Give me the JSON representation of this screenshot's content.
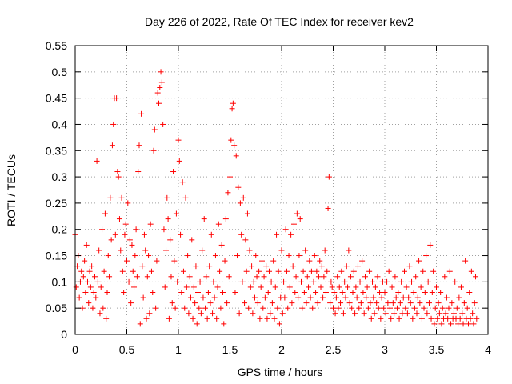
{
  "chart_data": {
    "type": "scatter",
    "title": "Day 226 of 2022, Rate Of TEC Index for receiver kev2",
    "xlabel": "GPS time / hours",
    "ylabel": "ROTI / TECUs",
    "xlim": [
      0,
      4
    ],
    "ylim": [
      0,
      0.55
    ],
    "grid": true,
    "marker": "+",
    "series_color": "#ff0000",
    "x_ticks": [
      0,
      0.5,
      1,
      1.5,
      2,
      2.5,
      3,
      3.5,
      4
    ],
    "x_tick_labels": [
      "0",
      "0.5",
      "1",
      "1.5",
      "2",
      "2.5",
      "3",
      "3.5",
      "4"
    ],
    "y_ticks": [
      0,
      0.05,
      0.1,
      0.15,
      0.2,
      0.25,
      0.3,
      0.35,
      0.4,
      0.45,
      0.5,
      0.55
    ],
    "y_tick_labels": [
      "0",
      "0.05",
      "0.1",
      "0.15",
      "0.2",
      "0.25",
      "0.3",
      "0.35",
      "0.4",
      "0.45",
      "0.5",
      "0.55"
    ],
    "points": [
      [
        0.0,
        0.19
      ],
      [
        0.01,
        0.09
      ],
      [
        0.02,
        0.13
      ],
      [
        0.03,
        0.15
      ],
      [
        0.04,
        0.07
      ],
      [
        0.05,
        0.1
      ],
      [
        0.06,
        0.12
      ],
      [
        0.07,
        0.05
      ],
      [
        0.08,
        0.11
      ],
      [
        0.09,
        0.14
      ],
      [
        0.1,
        0.08
      ],
      [
        0.11,
        0.17
      ],
      [
        0.12,
        0.1
      ],
      [
        0.13,
        0.06
      ],
      [
        0.14,
        0.12
      ],
      [
        0.15,
        0.09
      ],
      [
        0.16,
        0.13
      ],
      [
        0.17,
        0.05
      ],
      [
        0.18,
        0.08
      ],
      [
        0.19,
        0.11
      ],
      [
        0.2,
        0.07
      ],
      [
        0.21,
        0.33
      ],
      [
        0.22,
        0.1
      ],
      [
        0.23,
        0.16
      ],
      [
        0.24,
        0.04
      ],
      [
        0.25,
        0.09
      ],
      [
        0.26,
        0.2
      ],
      [
        0.27,
        0.05
      ],
      [
        0.28,
        0.12
      ],
      [
        0.29,
        0.23
      ],
      [
        0.3,
        0.03
      ],
      [
        0.31,
        0.08
      ],
      [
        0.32,
        0.15
      ],
      [
        0.33,
        0.11
      ],
      [
        0.34,
        0.26
      ],
      [
        0.35,
        0.18
      ],
      [
        0.36,
        0.36
      ],
      [
        0.37,
        0.4
      ],
      [
        0.38,
        0.45
      ],
      [
        0.39,
        0.19
      ],
      [
        0.4,
        0.45
      ],
      [
        0.41,
        0.31
      ],
      [
        0.42,
        0.3
      ],
      [
        0.43,
        0.22
      ],
      [
        0.44,
        0.16
      ],
      [
        0.45,
        0.26
      ],
      [
        0.46,
        0.12
      ],
      [
        0.47,
        0.08
      ],
      [
        0.48,
        0.19
      ],
      [
        0.49,
        0.21
      ],
      [
        0.5,
        0.14
      ],
      [
        0.51,
        0.25
      ],
      [
        0.52,
        0.1
      ],
      [
        0.53,
        0.18
      ],
      [
        0.54,
        0.06
      ],
      [
        0.55,
        0.17
      ],
      [
        0.56,
        0.12
      ],
      [
        0.57,
        0.09
      ],
      [
        0.58,
        0.15
      ],
      [
        0.59,
        0.2
      ],
      [
        0.6,
        0.11
      ],
      [
        0.61,
        0.31
      ],
      [
        0.62,
        0.36
      ],
      [
        0.63,
        0.02
      ],
      [
        0.64,
        0.42
      ],
      [
        0.65,
        0.13
      ],
      [
        0.66,
        0.07
      ],
      [
        0.67,
        0.19
      ],
      [
        0.68,
        0.16
      ],
      [
        0.69,
        0.03
      ],
      [
        0.7,
        0.11
      ],
      [
        0.71,
        0.15
      ],
      [
        0.72,
        0.04
      ],
      [
        0.73,
        0.21
      ],
      [
        0.74,
        0.12
      ],
      [
        0.75,
        0.08
      ],
      [
        0.76,
        0.35
      ],
      [
        0.77,
        0.39
      ],
      [
        0.78,
        0.05
      ],
      [
        0.79,
        0.14
      ],
      [
        0.8,
        0.46
      ],
      [
        0.81,
        0.44
      ],
      [
        0.82,
        0.47
      ],
      [
        0.83,
        0.5
      ],
      [
        0.84,
        0.48
      ],
      [
        0.85,
        0.4
      ],
      [
        0.86,
        0.2
      ],
      [
        0.87,
        0.09
      ],
      [
        0.88,
        0.16
      ],
      [
        0.89,
        0.26
      ],
      [
        0.9,
        0.22
      ],
      [
        0.91,
        0.03
      ],
      [
        0.92,
        0.18
      ],
      [
        0.93,
        0.11
      ],
      [
        0.94,
        0.06
      ],
      [
        0.95,
        0.31
      ],
      [
        0.96,
        0.14
      ],
      [
        0.97,
        0.05
      ],
      [
        0.98,
        0.23
      ],
      [
        0.99,
        0.1
      ],
      [
        1.0,
        0.37
      ],
      [
        1.01,
        0.33
      ],
      [
        1.02,
        0.19
      ],
      [
        1.03,
        0.08
      ],
      [
        1.04,
        0.29
      ],
      [
        1.05,
        0.12
      ],
      [
        1.06,
        0.05
      ],
      [
        1.07,
        0.26
      ],
      [
        1.08,
        0.09
      ],
      [
        1.09,
        0.15
      ],
      [
        1.1,
        0.04
      ],
      [
        1.11,
        0.11
      ],
      [
        1.12,
        0.07
      ],
      [
        1.13,
        0.18
      ],
      [
        1.14,
        0.03
      ],
      [
        1.15,
        0.09
      ],
      [
        1.16,
        0.06
      ],
      [
        1.17,
        0.13
      ],
      [
        1.18,
        0.02
      ],
      [
        1.19,
        0.08
      ],
      [
        1.2,
        0.05
      ],
      [
        1.21,
        0.1
      ],
      [
        1.22,
        0.04
      ],
      [
        1.23,
        0.16
      ],
      [
        1.24,
        0.07
      ],
      [
        1.25,
        0.22
      ],
      [
        1.26,
        0.05
      ],
      [
        1.27,
        0.11
      ],
      [
        1.28,
        0.03
      ],
      [
        1.29,
        0.08
      ],
      [
        1.3,
        0.13
      ],
      [
        1.31,
        0.06
      ],
      [
        1.32,
        0.19
      ],
      [
        1.33,
        0.04
      ],
      [
        1.34,
        0.1
      ],
      [
        1.35,
        0.07
      ],
      [
        1.36,
        0.15
      ],
      [
        1.37,
        0.03
      ],
      [
        1.38,
        0.09
      ],
      [
        1.39,
        0.21
      ],
      [
        1.4,
        0.12
      ],
      [
        1.41,
        0.05
      ],
      [
        1.42,
        0.17
      ],
      [
        1.43,
        0.08
      ],
      [
        1.44,
        0.02
      ],
      [
        1.45,
        0.14
      ],
      [
        1.46,
        0.22
      ],
      [
        1.47,
        0.06
      ],
      [
        1.48,
        0.27
      ],
      [
        1.49,
        0.11
      ],
      [
        1.5,
        0.3
      ],
      [
        1.51,
        0.37
      ],
      [
        1.52,
        0.43
      ],
      [
        1.53,
        0.44
      ],
      [
        1.54,
        0.36
      ],
      [
        1.55,
        0.08
      ],
      [
        1.56,
        0.34
      ],
      [
        1.57,
        0.15
      ],
      [
        1.58,
        0.28
      ],
      [
        1.59,
        0.04
      ],
      [
        1.6,
        0.25
      ],
      [
        1.61,
        0.19
      ],
      [
        1.62,
        0.1
      ],
      [
        1.63,
        0.26
      ],
      [
        1.64,
        0.06
      ],
      [
        1.65,
        0.18
      ],
      [
        1.66,
        0.12
      ],
      [
        1.67,
        0.23
      ],
      [
        1.68,
        0.05
      ],
      [
        1.69,
        0.16
      ],
      [
        1.7,
        0.09
      ],
      [
        1.71,
        0.13
      ],
      [
        1.72,
        0.04
      ],
      [
        1.73,
        0.1
      ],
      [
        1.74,
        0.07
      ],
      [
        1.75,
        0.15
      ],
      [
        1.76,
        0.11
      ],
      [
        1.77,
        0.06
      ],
      [
        1.78,
        0.12
      ],
      [
        1.79,
        0.03
      ],
      [
        1.8,
        0.09
      ],
      [
        1.81,
        0.14
      ],
      [
        1.82,
        0.05
      ],
      [
        1.83,
        0.11
      ],
      [
        1.84,
        0.07
      ],
      [
        1.85,
        0.13
      ],
      [
        1.86,
        0.03
      ],
      [
        1.87,
        0.08
      ],
      [
        1.88,
        0.12
      ],
      [
        1.89,
        0.04
      ],
      [
        1.9,
        0.1
      ],
      [
        1.91,
        0.06
      ],
      [
        1.92,
        0.14
      ],
      [
        1.93,
        0.03
      ],
      [
        1.94,
        0.09
      ],
      [
        1.95,
        0.19
      ],
      [
        1.96,
        0.05
      ],
      [
        1.97,
        0.12
      ],
      [
        1.98,
        0.02
      ],
      [
        1.99,
        0.07
      ],
      [
        2.0,
        0.16
      ],
      [
        2.01,
        0.04
      ],
      [
        2.02,
        0.1
      ],
      [
        2.03,
        0.07
      ],
      [
        2.04,
        0.2
      ],
      [
        2.05,
        0.12
      ],
      [
        2.06,
        0.05
      ],
      [
        2.07,
        0.15
      ],
      [
        2.08,
        0.09
      ],
      [
        2.09,
        0.19
      ],
      [
        2.1,
        0.06
      ],
      [
        2.11,
        0.13
      ],
      [
        2.12,
        0.21
      ],
      [
        2.13,
        0.08
      ],
      [
        2.14,
        0.11
      ],
      [
        2.15,
        0.23
      ],
      [
        2.16,
        0.07
      ],
      [
        2.17,
        0.15
      ],
      [
        2.18,
        0.22
      ],
      [
        2.19,
        0.1
      ],
      [
        2.2,
        0.05
      ],
      [
        2.21,
        0.12
      ],
      [
        2.22,
        0.08
      ],
      [
        2.23,
        0.16
      ],
      [
        2.24,
        0.06
      ],
      [
        2.25,
        0.11
      ],
      [
        2.26,
        0.09
      ],
      [
        2.27,
        0.14
      ],
      [
        2.28,
        0.07
      ],
      [
        2.29,
        0.12
      ],
      [
        2.3,
        0.05
      ],
      [
        2.31,
        0.1
      ],
      [
        2.32,
        0.15
      ],
      [
        2.33,
        0.08
      ],
      [
        2.34,
        0.12
      ],
      [
        2.35,
        0.06
      ],
      [
        2.36,
        0.11
      ],
      [
        2.37,
        0.14
      ],
      [
        2.38,
        0.09
      ],
      [
        2.39,
        0.13
      ],
      [
        2.4,
        0.07
      ],
      [
        2.41,
        0.11
      ],
      [
        2.42,
        0.16
      ],
      [
        2.43,
        0.08
      ],
      [
        2.44,
        0.12
      ],
      [
        2.45,
        0.24
      ],
      [
        2.46,
        0.3
      ],
      [
        2.47,
        0.06
      ],
      [
        2.48,
        0.1
      ],
      [
        2.49,
        0.09
      ],
      [
        2.5,
        0.05
      ],
      [
        2.51,
        0.08
      ],
      [
        2.52,
        0.04
      ],
      [
        2.53,
        0.07
      ],
      [
        2.54,
        0.11
      ],
      [
        2.55,
        0.05
      ],
      [
        2.56,
        0.09
      ],
      [
        2.57,
        0.06
      ],
      [
        2.58,
        0.12
      ],
      [
        2.59,
        0.08
      ],
      [
        2.6,
        0.04
      ],
      [
        2.61,
        0.1
      ],
      [
        2.62,
        0.07
      ],
      [
        2.63,
        0.13
      ],
      [
        2.64,
        0.09
      ],
      [
        2.65,
        0.16
      ],
      [
        2.66,
        0.06
      ],
      [
        2.67,
        0.11
      ],
      [
        2.68,
        0.05
      ],
      [
        2.69,
        0.08
      ],
      [
        2.7,
        0.12
      ],
      [
        2.71,
        0.04
      ],
      [
        2.72,
        0.09
      ],
      [
        2.73,
        0.07
      ],
      [
        2.74,
        0.13
      ],
      [
        2.75,
        0.05
      ],
      [
        2.76,
        0.1
      ],
      [
        2.77,
        0.06
      ],
      [
        2.78,
        0.14
      ],
      [
        2.79,
        0.08
      ],
      [
        2.8,
        0.04
      ],
      [
        2.81,
        0.11
      ],
      [
        2.82,
        0.07
      ],
      [
        2.83,
        0.09
      ],
      [
        2.84,
        0.05
      ],
      [
        2.85,
        0.12
      ],
      [
        2.86,
        0.06
      ],
      [
        2.87,
        0.03
      ],
      [
        2.88,
        0.1
      ],
      [
        2.89,
        0.07
      ],
      [
        2.9,
        0.04
      ],
      [
        2.91,
        0.09
      ],
      [
        2.92,
        0.06
      ],
      [
        2.93,
        0.11
      ],
      [
        2.94,
        0.05
      ],
      [
        2.95,
        0.08
      ],
      [
        2.96,
        0.03
      ],
      [
        2.97,
        0.07
      ],
      [
        2.98,
        0.1
      ],
      [
        2.99,
        0.05
      ],
      [
        3.0,
        0.08
      ],
      [
        3.01,
        0.04
      ],
      [
        3.02,
        0.1
      ],
      [
        3.03,
        0.06
      ],
      [
        3.04,
        0.12
      ],
      [
        3.05,
        0.05
      ],
      [
        3.06,
        0.03
      ],
      [
        3.07,
        0.09
      ],
      [
        3.08,
        0.06
      ],
      [
        3.09,
        0.04
      ],
      [
        3.1,
        0.11
      ],
      [
        3.11,
        0.07
      ],
      [
        3.12,
        0.05
      ],
      [
        3.13,
        0.08
      ],
      [
        3.14,
        0.03
      ],
      [
        3.15,
        0.06
      ],
      [
        3.16,
        0.1
      ],
      [
        3.17,
        0.04
      ],
      [
        3.18,
        0.07
      ],
      [
        3.19,
        0.12
      ],
      [
        3.2,
        0.05
      ],
      [
        3.21,
        0.09
      ],
      [
        3.22,
        0.04
      ],
      [
        3.23,
        0.07
      ],
      [
        3.24,
        0.13
      ],
      [
        3.25,
        0.06
      ],
      [
        3.26,
        0.1
      ],
      [
        3.27,
        0.03
      ],
      [
        3.28,
        0.08
      ],
      [
        3.29,
        0.05
      ],
      [
        3.3,
        0.11
      ],
      [
        3.31,
        0.04
      ],
      [
        3.32,
        0.07
      ],
      [
        3.33,
        0.14
      ],
      [
        3.34,
        0.06
      ],
      [
        3.35,
        0.09
      ],
      [
        3.36,
        0.03
      ],
      [
        3.37,
        0.12
      ],
      [
        3.38,
        0.05
      ],
      [
        3.39,
        0.08
      ],
      [
        3.4,
        0.15
      ],
      [
        3.41,
        0.04
      ],
      [
        3.42,
        0.1
      ],
      [
        3.43,
        0.06
      ],
      [
        3.44,
        0.17
      ],
      [
        3.45,
        0.03
      ],
      [
        3.46,
        0.08
      ],
      [
        3.47,
        0.12
      ],
      [
        3.48,
        0.02
      ],
      [
        3.49,
        0.05
      ],
      [
        3.5,
        0.09
      ],
      [
        3.51,
        0.03
      ],
      [
        3.52,
        0.06
      ],
      [
        3.53,
        0.04
      ],
      [
        3.54,
        0.08
      ],
      [
        3.55,
        0.02
      ],
      [
        3.56,
        0.05
      ],
      [
        3.57,
        0.03
      ],
      [
        3.58,
        0.11
      ],
      [
        3.59,
        0.04
      ],
      [
        3.6,
        0.07
      ],
      [
        3.61,
        0.03
      ],
      [
        3.62,
        0.05
      ],
      [
        3.63,
        0.12
      ],
      [
        3.64,
        0.02
      ],
      [
        3.65,
        0.06
      ],
      [
        3.66,
        0.03
      ],
      [
        3.67,
        0.04
      ],
      [
        3.68,
        0.1
      ],
      [
        3.69,
        0.03
      ],
      [
        3.7,
        0.05
      ],
      [
        3.71,
        0.02
      ],
      [
        3.72,
        0.07
      ],
      [
        3.73,
        0.03
      ],
      [
        3.74,
        0.09
      ],
      [
        3.75,
        0.04
      ],
      [
        3.76,
        0.02
      ],
      [
        3.77,
        0.06
      ],
      [
        3.78,
        0.14
      ],
      [
        3.79,
        0.03
      ],
      [
        3.8,
        0.05
      ],
      [
        3.81,
        0.02
      ],
      [
        3.82,
        0.08
      ],
      [
        3.83,
        0.03
      ],
      [
        3.84,
        0.12
      ],
      [
        3.85,
        0.04
      ],
      [
        3.86,
        0.02
      ],
      [
        3.87,
        0.06
      ],
      [
        3.88,
        0.11
      ],
      [
        3.89,
        0.03
      ]
    ]
  }
}
